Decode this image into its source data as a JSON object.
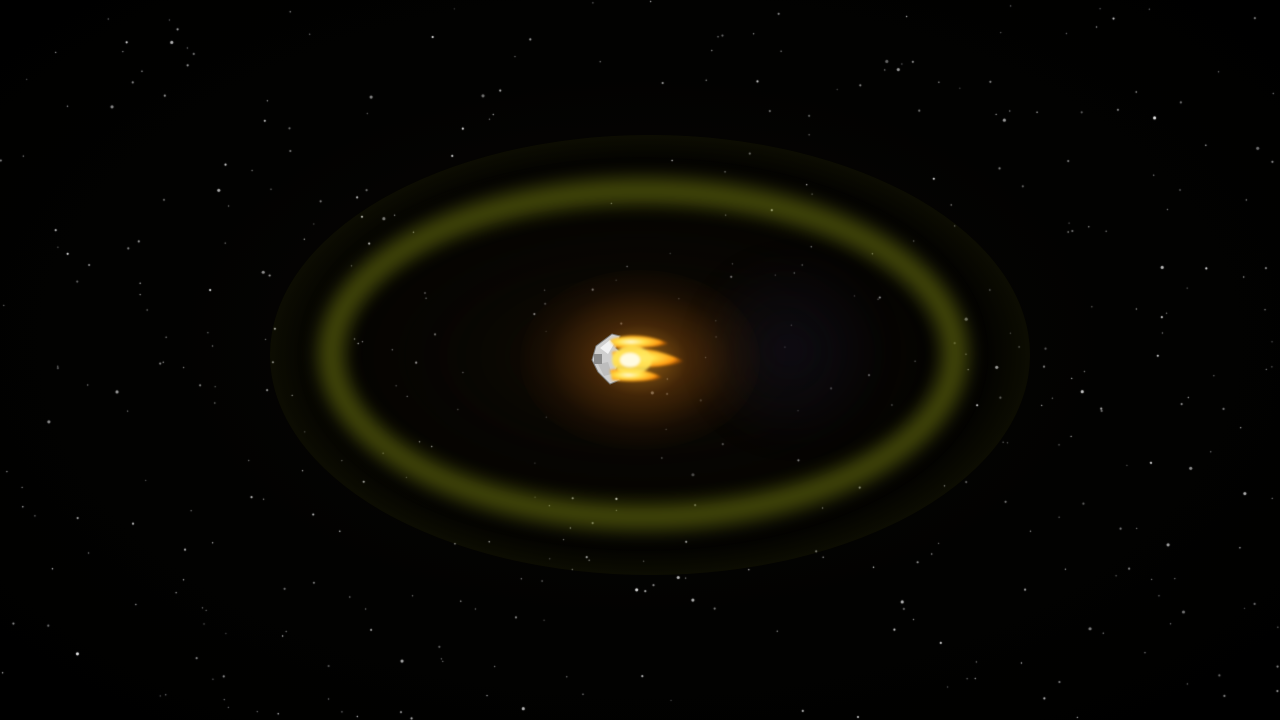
{
  "scene": {
    "background_color": "#000000",
    "ring_color": "#76800e",
    "glow_color": "#ffaa28",
    "ship_color": "#d9d9d9",
    "thruster_color": "#ffd21e",
    "star_count": 420
  },
  "entities": {
    "ring_icon": "orbit-ring-icon",
    "ship_icon": "spaceship-icon",
    "thruster_icon": "thruster-flame-icon"
  }
}
